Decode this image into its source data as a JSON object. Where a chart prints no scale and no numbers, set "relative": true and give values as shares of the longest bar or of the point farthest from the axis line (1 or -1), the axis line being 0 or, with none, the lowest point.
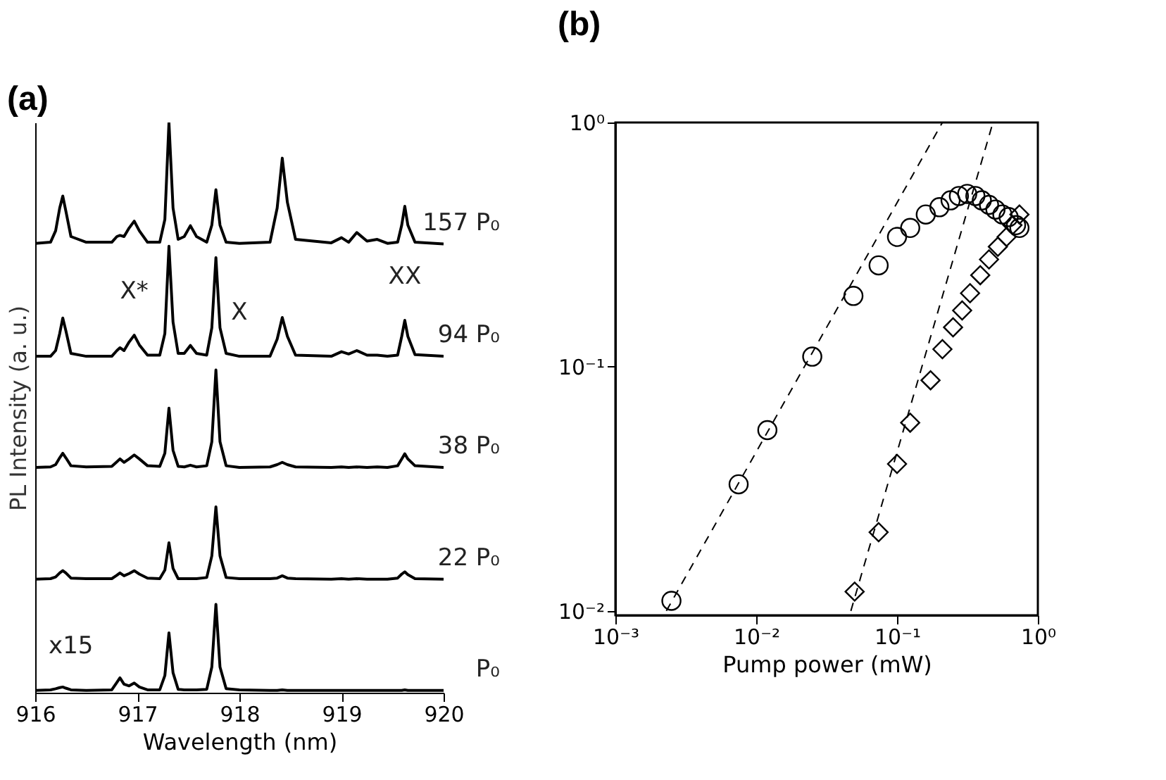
{
  "chart_data": [
    {
      "type": "line",
      "title": "(a)",
      "xlabel": "Wavelength (nm)",
      "ylabel": "PL Intensity (a. u.)",
      "relative": true,
      "xlim": [
        916,
        920
      ],
      "xticks": [
        916,
        917,
        918,
        919,
        920
      ],
      "grid": false,
      "line_style": "solid",
      "x": [
        916.0,
        916.15,
        916.2,
        916.24,
        916.27,
        916.3,
        916.35,
        916.5,
        916.75,
        916.8,
        916.83,
        916.87,
        916.92,
        916.97,
        917.02,
        917.1,
        917.22,
        917.27,
        917.31,
        917.35,
        917.4,
        917.46,
        917.52,
        917.58,
        917.68,
        917.73,
        917.77,
        917.81,
        917.87,
        918.0,
        918.3,
        918.37,
        918.42,
        918.47,
        918.55,
        918.9,
        919.0,
        919.07,
        919.15,
        919.25,
        919.35,
        919.45,
        919.55,
        919.59,
        919.62,
        919.65,
        919.72,
        920.0
      ],
      "series": [
        {
          "name": "157 P₀",
          "color": "#000000",
          "values": [
            0.788,
            0.79,
            0.81,
            0.85,
            0.871,
            0.845,
            0.8,
            0.79,
            0.79,
            0.8,
            0.802,
            0.8,
            0.815,
            0.827,
            0.81,
            0.79,
            0.79,
            0.83,
            1.0,
            0.85,
            0.795,
            0.8,
            0.819,
            0.8,
            0.79,
            0.82,
            0.882,
            0.82,
            0.79,
            0.788,
            0.79,
            0.85,
            0.9375,
            0.86,
            0.795,
            0.789,
            0.798,
            0.79,
            0.807,
            0.792,
            0.795,
            0.788,
            0.79,
            0.82,
            0.853,
            0.82,
            0.79,
            0.787
          ]
        },
        {
          "name": "94 P₀",
          "color": "#000000",
          "values": [
            0.59,
            0.59,
            0.6,
            0.63,
            0.657,
            0.635,
            0.595,
            0.59,
            0.59,
            0.6,
            0.605,
            0.6,
            0.615,
            0.627,
            0.61,
            0.592,
            0.592,
            0.63,
            0.783,
            0.65,
            0.595,
            0.595,
            0.609,
            0.595,
            0.592,
            0.64,
            0.763,
            0.64,
            0.595,
            0.59,
            0.59,
            0.62,
            0.658,
            0.625,
            0.592,
            0.59,
            0.598,
            0.594,
            0.6,
            0.592,
            0.592,
            0.59,
            0.592,
            0.625,
            0.653,
            0.625,
            0.593,
            0.59
          ]
        },
        {
          "name": "38 P₀",
          "color": "#000000",
          "values": [
            0.395,
            0.396,
            0.4,
            0.412,
            0.42,
            0.412,
            0.398,
            0.396,
            0.397,
            0.405,
            0.41,
            0.404,
            0.41,
            0.417,
            0.41,
            0.398,
            0.397,
            0.42,
            0.499,
            0.425,
            0.397,
            0.396,
            0.399,
            0.396,
            0.398,
            0.44,
            0.566,
            0.44,
            0.398,
            0.395,
            0.396,
            0.4,
            0.404,
            0.4,
            0.396,
            0.395,
            0.396,
            0.395,
            0.396,
            0.395,
            0.396,
            0.395,
            0.398,
            0.41,
            0.419,
            0.41,
            0.398,
            0.395
          ]
        },
        {
          "name": "22 P₀",
          "color": "#000000",
          "values": [
            0.199,
            0.2,
            0.203,
            0.21,
            0.214,
            0.21,
            0.201,
            0.2,
            0.2,
            0.206,
            0.21,
            0.205,
            0.209,
            0.214,
            0.208,
            0.201,
            0.2,
            0.215,
            0.263,
            0.218,
            0.2,
            0.2,
            0.2,
            0.2,
            0.202,
            0.24,
            0.326,
            0.24,
            0.202,
            0.2,
            0.2,
            0.201,
            0.205,
            0.201,
            0.2,
            0.199,
            0.2,
            0.199,
            0.2,
            0.199,
            0.199,
            0.199,
            0.201,
            0.208,
            0.212,
            0.207,
            0.2,
            0.199
          ]
        },
        {
          "name": "P₀",
          "color": "#000000",
          "values": [
            0.004,
            0.005,
            0.007,
            0.009,
            0.01,
            0.008,
            0.005,
            0.004,
            0.005,
            0.018,
            0.026,
            0.015,
            0.012,
            0.017,
            0.01,
            0.005,
            0.005,
            0.03,
            0.105,
            0.035,
            0.006,
            0.005,
            0.005,
            0.005,
            0.006,
            0.045,
            0.155,
            0.045,
            0.007,
            0.005,
            0.004,
            0.004,
            0.005,
            0.004,
            0.004,
            0.004,
            0.004,
            0.004,
            0.004,
            0.004,
            0.004,
            0.004,
            0.004,
            0.004,
            0.005,
            0.004,
            0.004,
            0.004
          ]
        }
      ],
      "annotations": [
        {
          "text": "X*",
          "x": 916.97,
          "y": 0.627
        },
        {
          "text": "X",
          "x": 918.0,
          "y": 0.59
        },
        {
          "text": "XX",
          "x": 919.62,
          "y": 0.653
        },
        {
          "text": "x15",
          "x": 916.35,
          "y": 0.005
        }
      ]
    },
    {
      "type": "scatter",
      "title": "(b)",
      "xlabel": "Pump power (mW)",
      "log": "xy",
      "xlim": [
        0.001,
        1
      ],
      "ylim": [
        0.0096,
        1
      ],
      "grid": false,
      "xticks": [
        {
          "value": 0.001,
          "label": "10⁻³"
        },
        {
          "value": 0.01,
          "label": "10⁻²"
        },
        {
          "value": 0.1,
          "label": "10⁻¹"
        },
        {
          "value": 1,
          "label": "10⁰"
        }
      ],
      "yticks": [
        {
          "value": 0.01,
          "label": "10⁻²"
        },
        {
          "value": 0.1,
          "label": "10⁻¹"
        },
        {
          "value": 1,
          "label": "10⁰"
        }
      ],
      "series": [
        {
          "type": "scatter",
          "marker": "circle",
          "color": "#000000",
          "x": [
            0.0025,
            0.0075,
            0.012,
            0.025,
            0.049,
            0.074,
            0.1,
            0.124,
            0.16,
            0.2,
            0.24,
            0.275,
            0.315,
            0.36,
            0.4,
            0.45,
            0.5,
            0.56,
            0.62,
            0.7,
            0.74
          ],
          "values": [
            0.011,
            0.033,
            0.055,
            0.11,
            0.195,
            0.26,
            0.34,
            0.37,
            0.42,
            0.45,
            0.48,
            0.5,
            0.51,
            0.5,
            0.48,
            0.46,
            0.44,
            0.42,
            0.41,
            0.38,
            0.37
          ]
        },
        {
          "type": "scatter",
          "marker": "diamond",
          "color": "#000000",
          "x": [
            0.05,
            0.074,
            0.1,
            0.124,
            0.173,
            0.21,
            0.25,
            0.29,
            0.33,
            0.39,
            0.45,
            0.52,
            0.6,
            0.66,
            0.74
          ],
          "values": [
            0.012,
            0.021,
            0.04,
            0.059,
            0.088,
            0.118,
            0.145,
            0.17,
            0.2,
            0.237,
            0.275,
            0.31,
            0.34,
            0.38,
            0.42
          ]
        },
        {
          "type": "line",
          "line_style": "dashed",
          "color": "#000000",
          "x": [
            0.0023,
            0.21
          ],
          "values": [
            0.01,
            1
          ]
        },
        {
          "type": "line",
          "line_style": "dashed",
          "color": "#000000",
          "x": [
            0.047,
            0.48
          ],
          "values": [
            0.01,
            1
          ]
        }
      ]
    }
  ]
}
